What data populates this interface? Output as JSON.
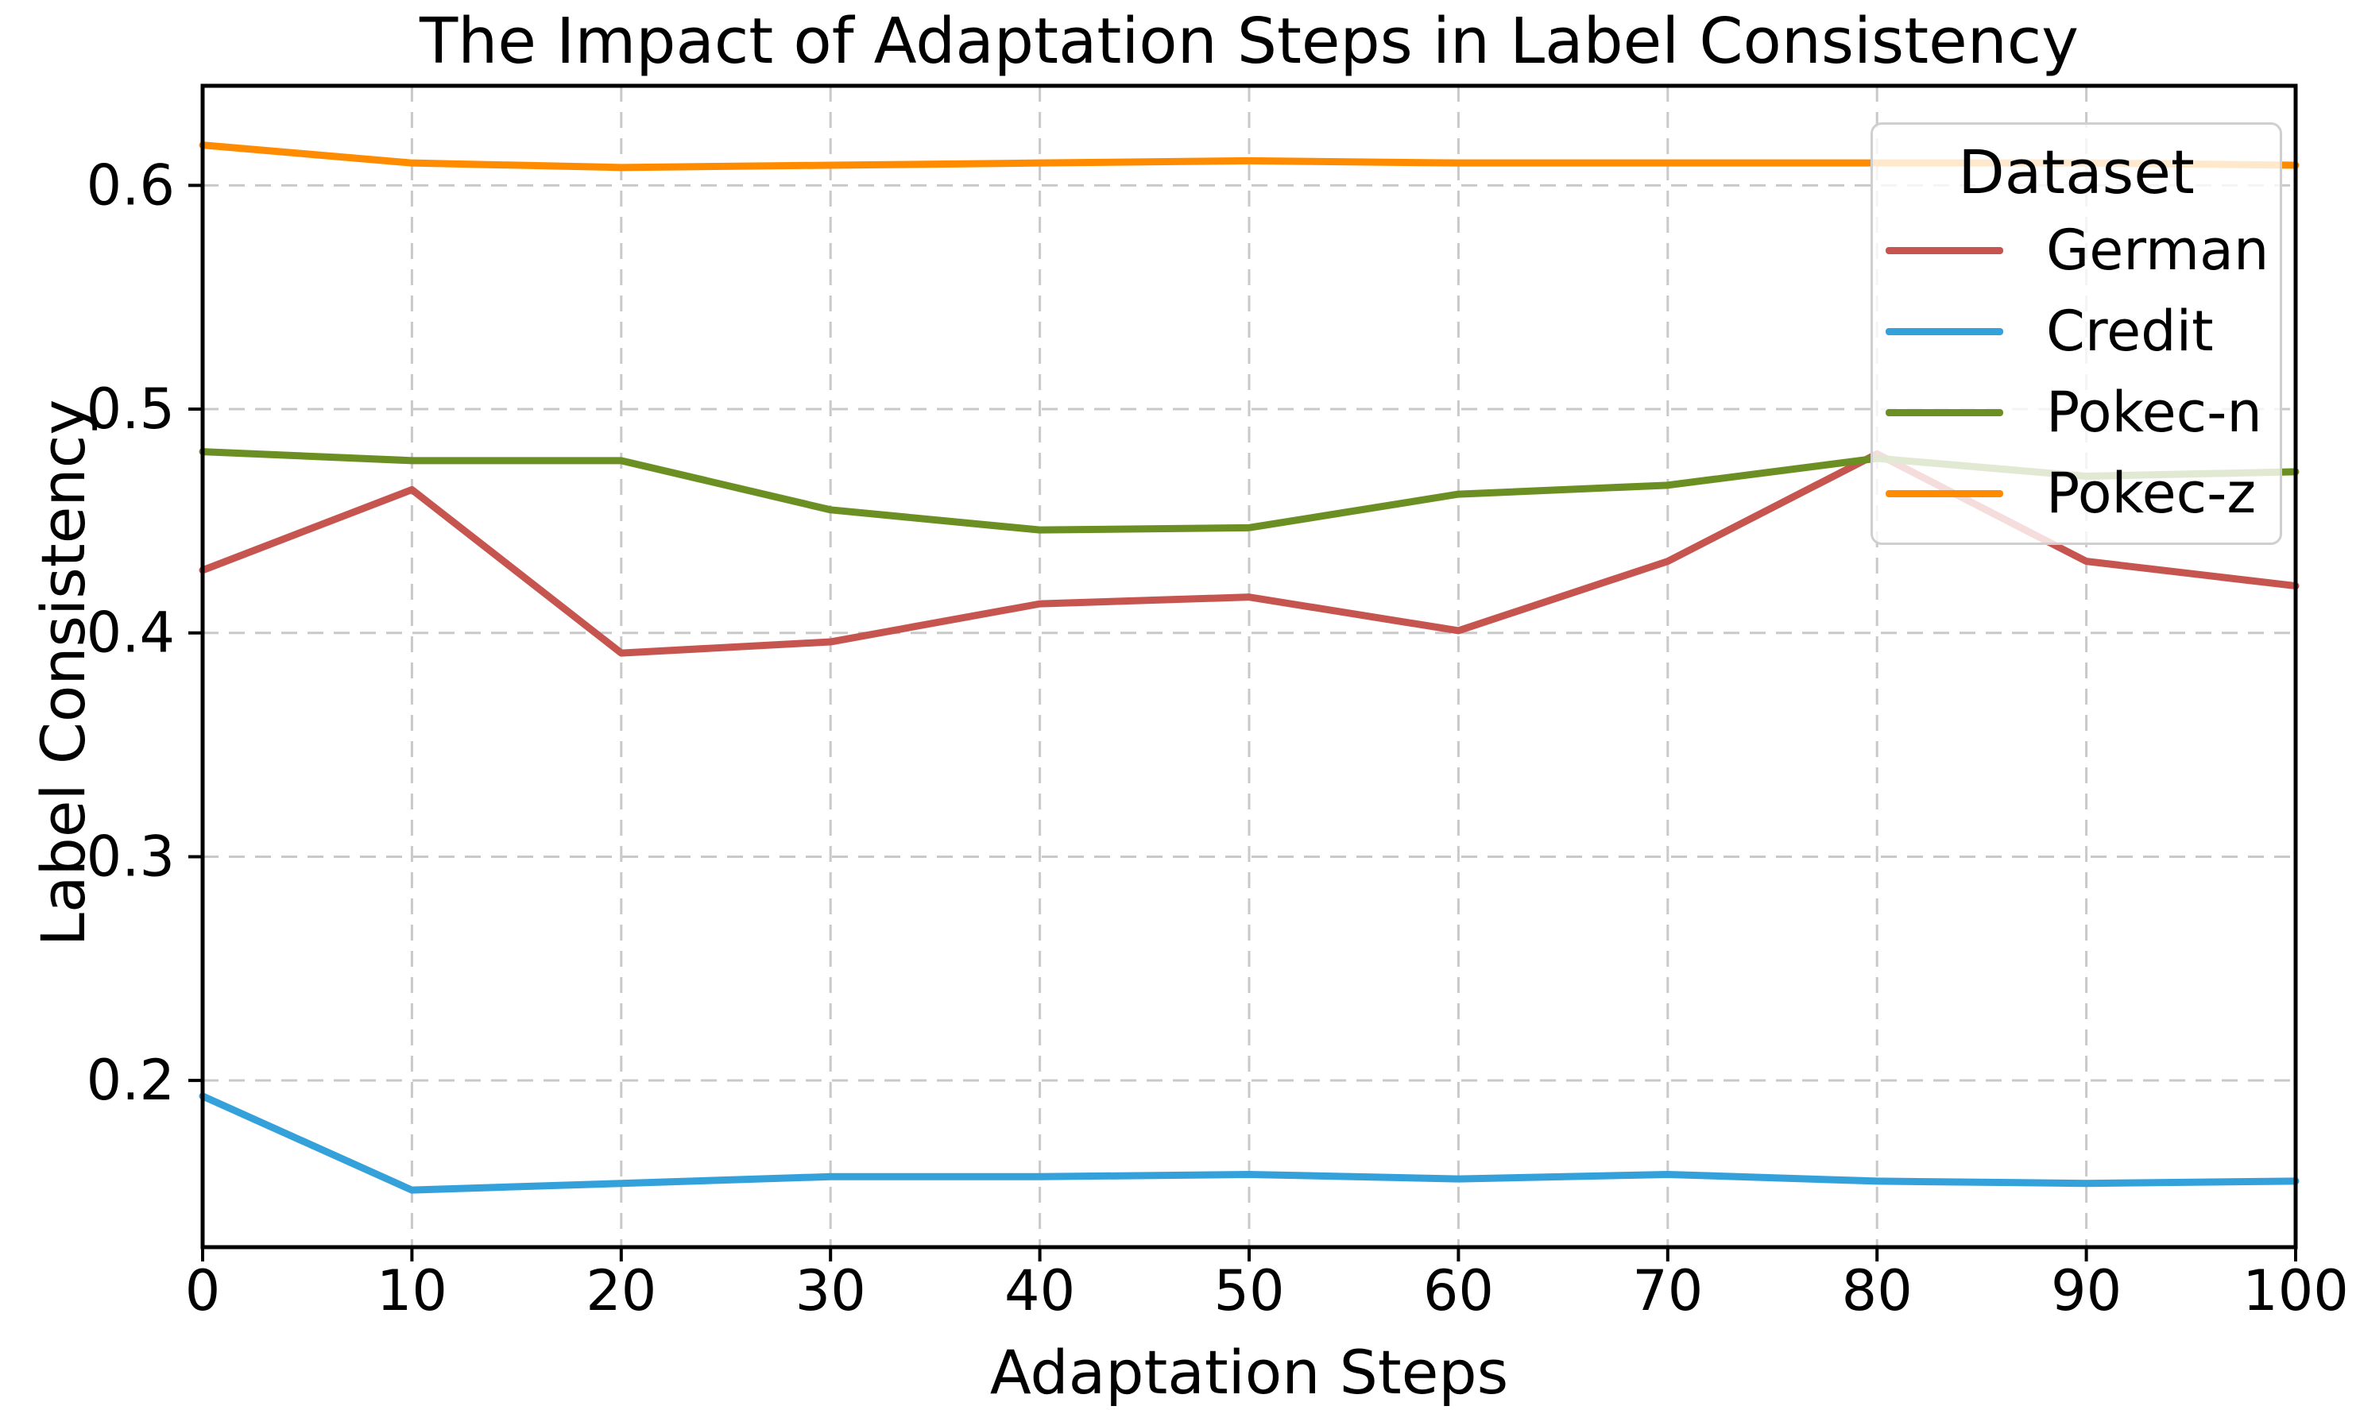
{
  "figure": {
    "title": "The Impact of Adaptation Steps in Label Consistency",
    "background_color": "#FFFFFF",
    "grid_color": "#C9C9C9",
    "spine_color": "#000000"
  },
  "axes": {
    "x_label": "Adaptation Steps",
    "y_label": "Label Consistency",
    "x_tick_labels": [
      "0",
      "10",
      "20",
      "30",
      "40",
      "50",
      "60",
      "70",
      "80",
      "90",
      "100"
    ],
    "y_tick_labels": [
      "0.2",
      "0.3",
      "0.4",
      "0.5",
      "0.6"
    ]
  },
  "legend": {
    "title": "Dataset",
    "entries": [
      "German",
      "Credit",
      "Pokec-n",
      "Pokec-z"
    ]
  },
  "chart_data": {
    "type": "line",
    "title": "The Impact of Adaptation Steps in Label Consistency",
    "xlabel": "Adaptation Steps",
    "ylabel": "Label Consistency",
    "x": [
      0,
      10,
      20,
      30,
      40,
      50,
      60,
      70,
      80,
      90,
      100
    ],
    "x_ticks": [
      0,
      10,
      20,
      30,
      40,
      50,
      60,
      70,
      80,
      90,
      100
    ],
    "y_ticks": [
      0.2,
      0.3,
      0.4,
      0.5,
      0.6
    ],
    "xlim": [
      0,
      100
    ],
    "ylim": [
      0.1255,
      0.6445
    ],
    "grid": true,
    "grid_style": "dashed",
    "legend_title": "Dataset",
    "legend_position": "upper right",
    "series": [
      {
        "name": "German",
        "color": "#C65550",
        "values": [
          0.428,
          0.464,
          0.391,
          0.396,
          0.413,
          0.416,
          0.401,
          0.432,
          0.48,
          0.432,
          0.421
        ]
      },
      {
        "name": "Credit",
        "color": "#35A1DB",
        "values": [
          0.193,
          0.151,
          0.154,
          0.157,
          0.157,
          0.158,
          0.156,
          0.158,
          0.155,
          0.154,
          0.155
        ]
      },
      {
        "name": "Pokec-n",
        "color": "#6C8F23",
        "values": [
          0.481,
          0.477,
          0.477,
          0.455,
          0.446,
          0.447,
          0.462,
          0.466,
          0.478,
          0.47,
          0.472
        ]
      },
      {
        "name": "Pokec-z",
        "color": "#FF8C00",
        "values": [
          0.618,
          0.61,
          0.608,
          0.609,
          0.61,
          0.611,
          0.61,
          0.61,
          0.61,
          0.61,
          0.609
        ]
      }
    ]
  }
}
